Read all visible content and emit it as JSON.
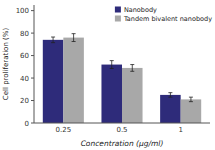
{
  "chart_data": {
    "type": "bar",
    "xlabel": "Concentration (μg/ml)",
    "ylabel": "Cell proliferation (%)",
    "categories": [
      "0.25",
      "0.5",
      "1"
    ],
    "series": [
      {
        "name": "Nanobody",
        "color": "#2E2B7A",
        "values": [
          74,
          52,
          25
        ],
        "errors": [
          2.5,
          3.5,
          2.0
        ]
      },
      {
        "name": "Tandem bivalent nanobody",
        "color": "#A8A8A8",
        "values": [
          76,
          49,
          21
        ],
        "errors": [
          3.5,
          3.0,
          2.0
        ]
      }
    ],
    "ylim": [
      0,
      105
    ],
    "yticks": [
      0,
      20,
      40,
      60,
      80,
      100
    ],
    "grid": false,
    "legend": "upper right"
  }
}
